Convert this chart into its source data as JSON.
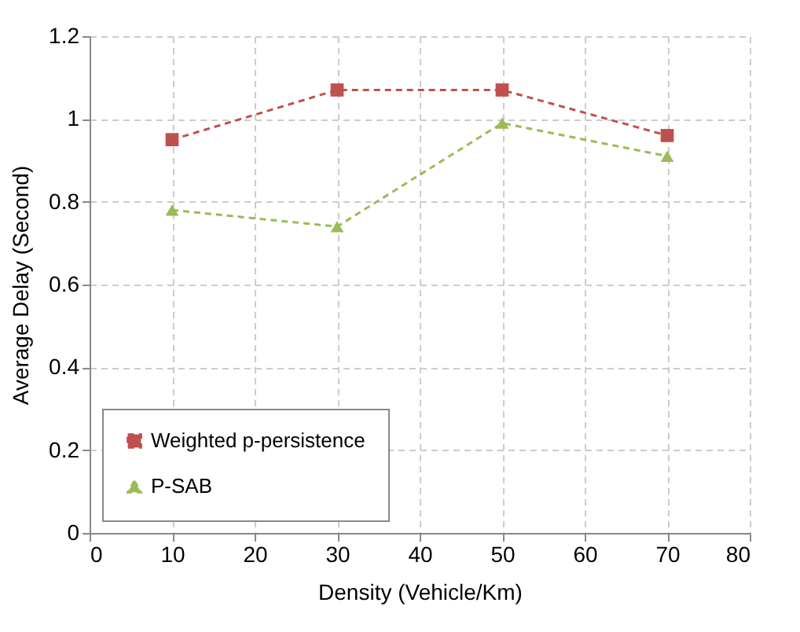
{
  "chart_data": {
    "type": "line",
    "xlabel": "Density (Vehicle/Km)",
    "ylabel": "Average Delay (Second)",
    "x": [
      10,
      30,
      50,
      70
    ],
    "series": [
      {
        "name": "Weighted p-persistence",
        "color": "#c0504d",
        "marker": "square",
        "line_style": "dashed",
        "values": [
          0.95,
          1.07,
          1.07,
          0.96
        ]
      },
      {
        "name": "P-SAB",
        "color": "#9bbb59",
        "marker": "triangle",
        "line_style": "dashed",
        "values": [
          0.78,
          0.74,
          0.99,
          0.91
        ]
      }
    ],
    "xlim": [
      0,
      80
    ],
    "xticks": [
      0,
      10,
      20,
      30,
      40,
      50,
      60,
      70,
      80
    ],
    "ylim": [
      0,
      1.2
    ],
    "yticks": [
      0,
      0.2,
      0.4,
      0.6,
      0.8,
      1,
      1.2
    ],
    "grid": true,
    "legend": "bottom left"
  }
}
